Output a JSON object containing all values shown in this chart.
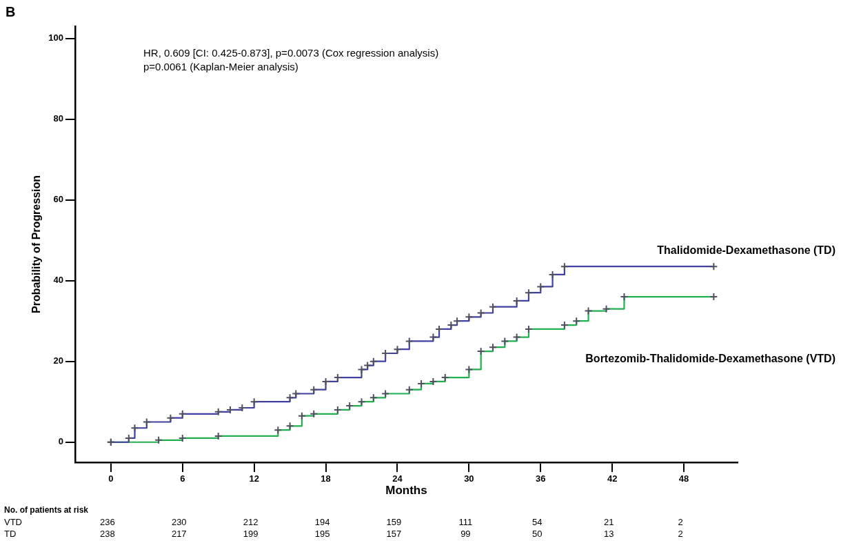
{
  "chart_data": {
    "type": "step",
    "xlabel": "Months",
    "ylabel": "Probability of Progression",
    "xlim": [
      -3,
      52.5
    ],
    "ylim": [
      -5,
      103
    ],
    "xticks": [
      0,
      6,
      12,
      18,
      24,
      30,
      36,
      42,
      48
    ],
    "yticks": [
      0,
      20,
      40,
      60,
      80,
      100
    ],
    "grid": false,
    "legend": false,
    "marker": "cross",
    "line_style": "solid",
    "series": [
      {
        "name": "Thalidomide-Dexamethasone (TD)",
        "color": "#4040a0",
        "x": [
          0,
          1.5,
          2,
          3,
          5,
          6,
          9,
          10,
          11,
          12,
          15,
          15.5,
          17,
          18,
          19,
          21,
          21.5,
          22,
          23,
          24,
          25,
          27,
          27.5,
          28.5,
          29,
          30,
          31,
          32,
          34,
          35,
          36,
          37,
          38,
          50.5
        ],
        "values": [
          0,
          1,
          3.5,
          5,
          6,
          7,
          7.5,
          8,
          8.5,
          10,
          11,
          12,
          13,
          15,
          16,
          18,
          19,
          20,
          22,
          23,
          25,
          26,
          28,
          29,
          30,
          31,
          32,
          33.5,
          35,
          37,
          38.5,
          41.5,
          43.5,
          43.5
        ]
      },
      {
        "name": "Bortezomib-Thalidomide-Dexamethasone (VTD)",
        "color": "#20b050",
        "x": [
          0,
          4,
          6,
          9,
          14,
          15,
          16,
          17,
          19,
          20,
          21,
          22,
          23,
          25,
          26,
          27,
          28,
          30,
          31,
          32,
          33,
          34,
          35,
          38,
          39,
          40,
          41.5,
          43,
          50.5
        ],
        "values": [
          0,
          0.5,
          1,
          1.5,
          3,
          4,
          6.5,
          7,
          8,
          9,
          10,
          11,
          12,
          13,
          14.5,
          15,
          16,
          18,
          22.5,
          23.5,
          25,
          26,
          28,
          29,
          30,
          32.5,
          33,
          36,
          36
        ]
      }
    ],
    "annotations": [
      "B",
      "HR, 0.609 [CI: 0.425-0.873], p=0.0073 (Cox regression analysis)",
      "p=0.0061 (Kaplan-Meier analysis)",
      "No. of patients at risk",
      "VTD 236 230 212 194 159 111 54 21 2",
      "TD 238 217 199 195 157 99 50 13 2"
    ]
  }
}
